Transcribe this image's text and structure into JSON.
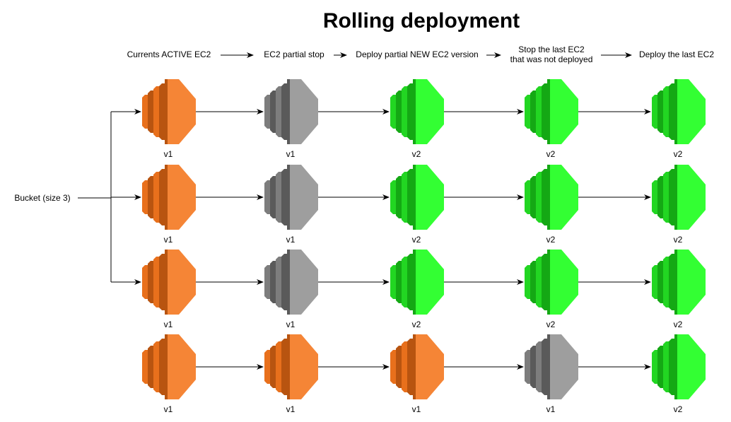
{
  "title": "Rolling deployment",
  "stages": [
    [
      "Currents ACTIVE EC2"
    ],
    [
      "EC2 partial stop"
    ],
    [
      "Deploy partial NEW EC2 version"
    ],
    [
      "Stop the last EC2",
      "that was not deployed"
    ],
    [
      "Deploy the last EC2"
    ]
  ],
  "source_label": "Bucket (size 3)",
  "colors": {
    "orange": "#f58536",
    "gray": "#9e9e9e",
    "green": "#33ff33"
  },
  "grid": [
    [
      {
        "state": "orange",
        "version": "v1"
      },
      {
        "state": "gray",
        "version": "v1"
      },
      {
        "state": "green",
        "version": "v2"
      },
      {
        "state": "green",
        "version": "v2"
      },
      {
        "state": "green",
        "version": "v2"
      }
    ],
    [
      {
        "state": "orange",
        "version": "v1"
      },
      {
        "state": "gray",
        "version": "v1"
      },
      {
        "state": "green",
        "version": "v2"
      },
      {
        "state": "green",
        "version": "v2"
      },
      {
        "state": "green",
        "version": "v2"
      }
    ],
    [
      {
        "state": "orange",
        "version": "v1"
      },
      {
        "state": "gray",
        "version": "v1"
      },
      {
        "state": "green",
        "version": "v2"
      },
      {
        "state": "green",
        "version": "v2"
      },
      {
        "state": "green",
        "version": "v2"
      }
    ],
    [
      {
        "state": "orange",
        "version": "v1"
      },
      {
        "state": "orange",
        "version": "v1"
      },
      {
        "state": "orange",
        "version": "v1"
      },
      {
        "state": "gray",
        "version": "v1"
      },
      {
        "state": "green",
        "version": "v2"
      }
    ]
  ],
  "bucket_rows": [
    0,
    1,
    2
  ]
}
